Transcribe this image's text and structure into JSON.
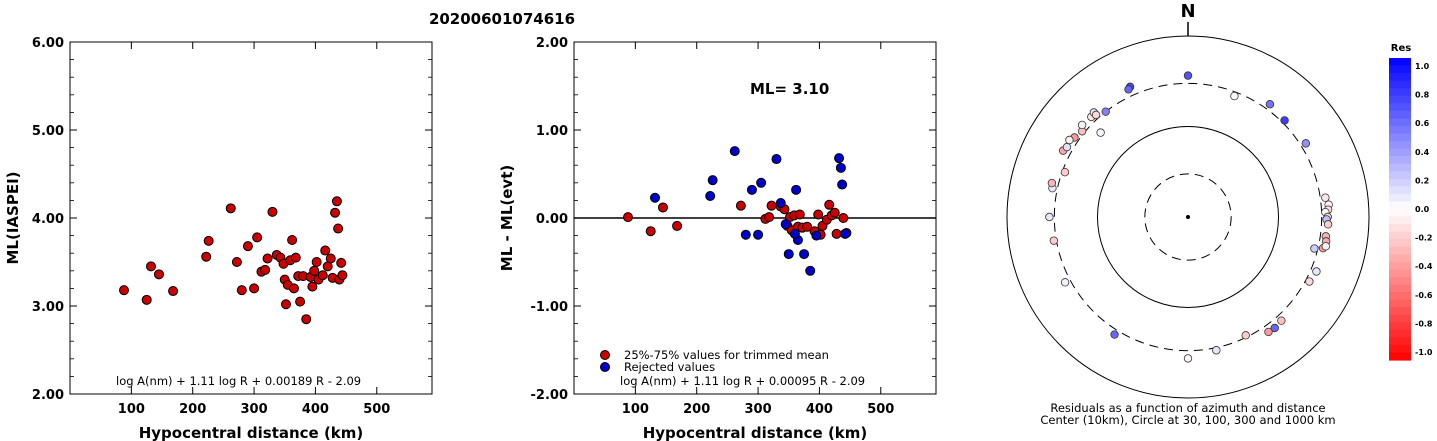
{
  "event_id": "20200601074616",
  "colors": {
    "red": "#cc0000",
    "blue": "#0000cc",
    "axis": "#000000"
  },
  "chart_data": [
    {
      "type": "scatter",
      "ylabel": "ML(IASPEI)",
      "xlabel": "Hypocentral distance (km)",
      "xlim": [
        0,
        590
      ],
      "ylim": [
        2.0,
        6.0
      ],
      "xticks": [
        100,
        200,
        300,
        400,
        500
      ],
      "yticks": [
        "2.00",
        "3.00",
        "4.00",
        "5.00",
        "6.00"
      ],
      "formula": "log A(nm) + 1.11 log R + 0.00189 R - 2.09",
      "series": [
        {
          "color": "red",
          "points": [
            [
              88,
              3.18
            ],
            [
              125,
              3.07
            ],
            [
              132,
              3.45
            ],
            [
              145,
              3.36
            ],
            [
              168,
              3.17
            ],
            [
              222,
              3.56
            ],
            [
              226,
              3.74
            ],
            [
              262,
              4.11
            ],
            [
              272,
              3.5
            ],
            [
              280,
              3.18
            ],
            [
              290,
              3.68
            ],
            [
              300,
              3.2
            ],
            [
              305,
              3.78
            ],
            [
              312,
              3.39
            ],
            [
              318,
              3.41
            ],
            [
              322,
              3.54
            ],
            [
              330,
              4.07
            ],
            [
              337,
              3.58
            ],
            [
              343,
              3.55
            ],
            [
              348,
              3.48
            ],
            [
              350,
              3.3
            ],
            [
              355,
              3.24
            ],
            [
              359,
              3.52
            ],
            [
              362,
              3.75
            ],
            [
              365,
              3.2
            ],
            [
              368,
              3.55
            ],
            [
              372,
              3.34
            ],
            [
              375,
              3.05
            ],
            [
              380,
              3.34
            ],
            [
              385,
              2.85
            ],
            [
              392,
              3.33
            ],
            [
              398,
              3.4
            ],
            [
              402,
              3.5
            ],
            [
              405,
              3.3
            ],
            [
              412,
              3.35
            ],
            [
              416,
              3.63
            ],
            [
              420,
              3.45
            ],
            [
              425,
              3.54
            ],
            [
              428,
              3.32
            ],
            [
              432,
              4.06
            ],
            [
              435,
              4.19
            ],
            [
              437,
              3.88
            ],
            [
              439,
              3.3
            ],
            [
              442,
              3.49
            ],
            [
              444,
              3.35
            ],
            [
              352,
              3.02
            ],
            [
              395,
              3.22
            ]
          ]
        }
      ]
    },
    {
      "type": "scatter",
      "ylabel": "ML - ML(evt)",
      "xlabel": "Hypocentral distance (km)",
      "xlim": [
        0,
        590
      ],
      "ylim": [
        -2.0,
        2.0
      ],
      "xticks": [
        100,
        200,
        300,
        400,
        500
      ],
      "yticks": [
        "-2.00",
        "-1.00",
        "0.00",
        "1.00",
        "2.00"
      ],
      "annotation": "ML= 3.10",
      "formula": "log A(nm) + 1.11 log R + 0.00095 R - 2.09",
      "legend": [
        {
          "color": "red",
          "label": "25%-75% values for trimmed mean"
        },
        {
          "color": "blue",
          "label": "Rejected values"
        }
      ],
      "series": [
        {
          "color": "red",
          "points": [
            [
              88,
              0.01
            ],
            [
              125,
              -0.15
            ],
            [
              145,
              0.12
            ],
            [
              168,
              -0.09
            ],
            [
              272,
              0.14
            ],
            [
              312,
              -0.01
            ],
            [
              318,
              0.01
            ],
            [
              322,
              0.14
            ],
            [
              337,
              0.13
            ],
            [
              343,
              0.1
            ],
            [
              348,
              -0.09
            ],
            [
              352,
              0.01
            ],
            [
              355,
              -0.14
            ],
            [
              359,
              0.03
            ],
            [
              365,
              -0.1
            ],
            [
              368,
              0.04
            ],
            [
              372,
              -0.11
            ],
            [
              380,
              -0.1
            ],
            [
              392,
              -0.15
            ],
            [
              398,
              0.04
            ],
            [
              402,
              -0.19
            ],
            [
              405,
              -0.09
            ],
            [
              412,
              -0.02
            ],
            [
              416,
              0.15
            ],
            [
              420,
              0.03
            ],
            [
              425,
              0.06
            ],
            [
              428,
              -0.18
            ],
            [
              439,
              0.0
            ],
            [
              444,
              -0.17
            ]
          ]
        },
        {
          "color": "blue",
          "points": [
            [
              132,
              0.23
            ],
            [
              222,
              0.25
            ],
            [
              226,
              0.43
            ],
            [
              262,
              0.76
            ],
            [
              280,
              -0.19
            ],
            [
              290,
              0.32
            ],
            [
              305,
              0.4
            ],
            [
              300,
              -0.19
            ],
            [
              330,
              0.67
            ],
            [
              337,
              0.17
            ],
            [
              350,
              -0.41
            ],
            [
              362,
              0.32
            ],
            [
              365,
              -0.25
            ],
            [
              375,
              -0.41
            ],
            [
              385,
              -0.6
            ],
            [
              395,
              -0.2
            ],
            [
              432,
              0.68
            ],
            [
              435,
              0.57
            ],
            [
              437,
              0.38
            ],
            [
              442,
              -0.18
            ],
            [
              360,
              -0.18
            ],
            [
              345,
              -0.07
            ]
          ]
        }
      ]
    },
    {
      "type": "polar-scatter",
      "north_label": "N",
      "caption_line1": "Residuals as a function of azimuth and distance",
      "caption_line2": "Center (10km), Circle at 30, 100, 300 and 1000 km",
      "rings_km": [
        30,
        100,
        300,
        1000
      ],
      "colorbar": {
        "title": "Res",
        "ticks": [
          "1.0",
          "0.8",
          "0.6",
          "0.4",
          "0.2",
          "0.0",
          "-0.2",
          "-0.4",
          "-0.6",
          "-0.8",
          "-1.0"
        ],
        "range": [
          -1.0,
          1.0
        ]
      },
      "points": [
        {
          "az": 0,
          "dist": 365,
          "res": 0.68
        },
        {
          "az": 21,
          "dist": 270,
          "res": 0.03
        },
        {
          "az": 36,
          "dist": 347,
          "res": 0.55
        },
        {
          "az": 45,
          "dist": 323,
          "res": 0.76
        },
        {
          "az": 58,
          "dist": 343,
          "res": 0.43
        },
        {
          "az": 82,
          "dist": 341,
          "res": -0.1
        },
        {
          "az": 85,
          "dist": 363,
          "res": -0.05
        },
        {
          "az": 87,
          "dist": 355,
          "res": -0.14
        },
        {
          "az": 88,
          "dist": 330,
          "res": 0.03
        },
        {
          "az": 90,
          "dist": 350,
          "res": -0.12
        },
        {
          "az": 91,
          "dist": 340,
          "res": 0.25
        },
        {
          "az": 93,
          "dist": 355,
          "res": -0.2
        },
        {
          "az": 98,
          "dist": 345,
          "res": -0.3
        },
        {
          "az": 100,
          "dist": 355,
          "res": -0.35
        },
        {
          "az": 103,
          "dist": 340,
          "res": -0.4
        },
        {
          "az": 102,
          "dist": 360,
          "res": 0.05
        },
        {
          "az": 113,
          "dist": 348,
          "res": 0.1
        },
        {
          "az": 118,
          "dist": 330,
          "res": -0.15
        },
        {
          "az": 104,
          "dist": 275,
          "res": 0.2
        },
        {
          "az": 138,
          "dist": 348,
          "res": -0.25
        },
        {
          "az": 142,
          "dist": 360,
          "res": 0.6
        },
        {
          "az": 145,
          "dist": 355,
          "res": -0.4
        },
        {
          "az": 154,
          "dist": 285,
          "res": -0.2
        },
        {
          "az": 168,
          "dist": 320,
          "res": 0.1
        },
        {
          "az": 180,
          "dist": 365,
          "res": -0.05
        },
        {
          "az": 212,
          "dist": 340,
          "res": 0.6
        },
        {
          "az": 242,
          "dist": 345,
          "res": 0.05
        },
        {
          "az": 260,
          "dist": 320,
          "res": -0.2
        },
        {
          "az": 270,
          "dist": 340,
          "res": 0.1
        },
        {
          "az": 282,
          "dist": 340,
          "res": 0.1
        },
        {
          "az": 284,
          "dist": 355,
          "res": -0.3
        },
        {
          "az": 290,
          "dist": 280,
          "res": -0.2
        },
        {
          "az": 298,
          "dist": 365,
          "res": -0.35
        },
        {
          "az": 300,
          "dist": 350,
          "res": 0.12
        },
        {
          "az": 305,
          "dist": 340,
          "res": -0.4
        },
        {
          "az": 309,
          "dist": 320,
          "res": -0.25
        },
        {
          "az": 303,
          "dist": 365,
          "res": -0.05
        },
        {
          "az": 311,
          "dist": 355,
          "res": 0.05
        },
        {
          "az": 316,
          "dist": 345,
          "res": -0.1
        },
        {
          "az": 318,
          "dist": 358,
          "res": 0.08
        },
        {
          "az": 322,
          "dist": 300,
          "res": 0.5
        },
        {
          "az": 318,
          "dist": 330,
          "res": -0.15
        },
        {
          "az": 336,
          "dist": 375,
          "res": 0.72
        },
        {
          "az": 335,
          "dist": 360,
          "res": 0.6
        },
        {
          "az": 314,
          "dist": 220,
          "res": 0.03
        }
      ]
    }
  ]
}
